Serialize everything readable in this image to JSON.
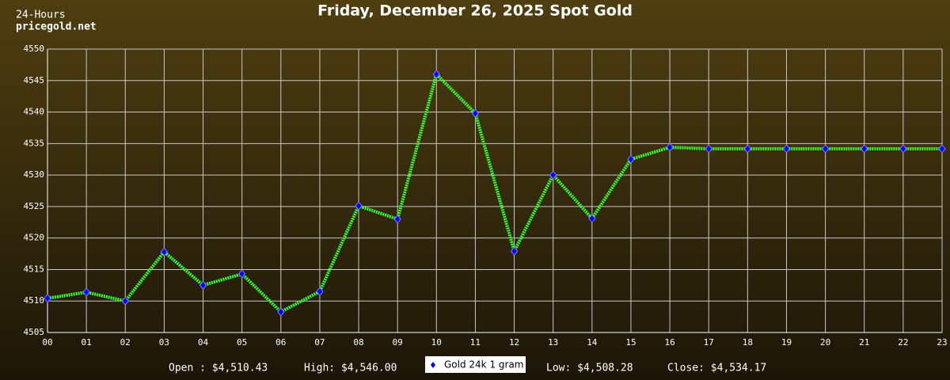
{
  "chart_data": {
    "type": "line",
    "title": "Friday, December 26, 2025 Spot Gold",
    "subtitle": [
      "24-Hours",
      "pricegold.net"
    ],
    "categories": [
      "00",
      "01",
      "02",
      "03",
      "04",
      "05",
      "06",
      "07",
      "08",
      "09",
      "10",
      "11",
      "12",
      "13",
      "14",
      "15",
      "16",
      "17",
      "18",
      "19",
      "20",
      "21",
      "22",
      "23"
    ],
    "series": [
      {
        "name": "Gold 24k 1 gram",
        "color": "#33ff33",
        "marker_color": "#0000ff",
        "values": [
          4510.43,
          4511.4,
          4510.0,
          4517.8,
          4512.5,
          4514.3,
          4508.28,
          4511.5,
          4525.1,
          4523.0,
          4546.0,
          4539.8,
          4517.9,
          4530.0,
          4523.1,
          4532.5,
          4534.4,
          4534.17,
          4534.17,
          4534.17,
          4534.17,
          4534.17,
          4534.17,
          4534.17
        ]
      }
    ],
    "ylim": [
      4505,
      4550
    ],
    "yticks": [
      4505,
      4510,
      4515,
      4520,
      4525,
      4530,
      4535,
      4540,
      4545,
      4550
    ],
    "grid": true,
    "stats": [
      "Open : $4,510.43",
      "High: $4,546.00",
      "Low: $4,508.28",
      "Close: $4,534.17"
    ]
  }
}
